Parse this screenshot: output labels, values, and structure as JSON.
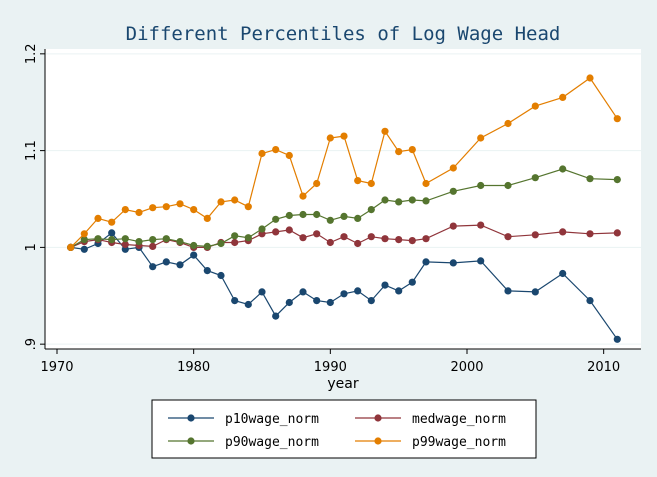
{
  "chart_data": {
    "type": "line",
    "title": "Different Percentiles of Log Wage Head",
    "xlabel": "year",
    "ylabel": "",
    "xlim": [
      1970,
      2012
    ],
    "ylim": [
      0.895,
      1.205
    ],
    "x_ticks": [
      1970,
      1980,
      1990,
      2000,
      2010
    ],
    "x_tick_labels": [
      "1970",
      "1980",
      "1990",
      "2000",
      "2010"
    ],
    "y_ticks": [
      0.9,
      1.0,
      1.1,
      1.2
    ],
    "y_tick_labels": [
      ".9",
      "1",
      "1.1",
      "1.2"
    ],
    "grid": "horizontal",
    "legend_position": "bottom",
    "x": [
      1971,
      1972,
      1973,
      1974,
      1975,
      1976,
      1977,
      1978,
      1979,
      1980,
      1981,
      1982,
      1983,
      1984,
      1985,
      1986,
      1987,
      1988,
      1989,
      1990,
      1991,
      1992,
      1993,
      1994,
      1995,
      1996,
      1997,
      1999,
      2001,
      2003,
      2005,
      2007,
      2009,
      2011
    ],
    "series": [
      {
        "name": "p10wage_norm",
        "color": "#1a476f",
        "values": [
          1.0,
          0.998,
          1.004,
          1.015,
          0.998,
          1.0,
          0.98,
          0.985,
          0.982,
          0.992,
          0.976,
          0.971,
          0.945,
          0.941,
          0.954,
          0.929,
          0.943,
          0.954,
          0.945,
          0.943,
          0.952,
          0.955,
          0.945,
          0.961,
          0.955,
          0.964,
          0.985,
          0.984,
          0.986,
          0.955,
          0.954,
          0.973,
          0.945,
          0.905
        ]
      },
      {
        "name": "medwage_norm",
        "color": "#90353b",
        "values": [
          1.0,
          1.006,
          1.008,
          1.005,
          1.003,
          1.002,
          1.001,
          1.008,
          1.005,
          1.0,
          1.0,
          1.005,
          1.005,
          1.007,
          1.014,
          1.016,
          1.018,
          1.01,
          1.014,
          1.005,
          1.011,
          1.004,
          1.011,
          1.009,
          1.008,
          1.007,
          1.009,
          1.022,
          1.023,
          1.011,
          1.013,
          1.016,
          1.014,
          1.015
        ]
      },
      {
        "name": "p90wage_norm",
        "color": "#55752f",
        "values": [
          1.0,
          1.008,
          1.009,
          1.008,
          1.009,
          1.006,
          1.008,
          1.009,
          1.006,
          1.002,
          1.001,
          1.004,
          1.012,
          1.01,
          1.019,
          1.029,
          1.033,
          1.034,
          1.034,
          1.028,
          1.032,
          1.03,
          1.039,
          1.049,
          1.047,
          1.049,
          1.048,
          1.058,
          1.064,
          1.064,
          1.072,
          1.081,
          1.071,
          1.07
        ]
      },
      {
        "name": "p99wage_norm",
        "color": "#e37e00",
        "values": [
          1.0,
          1.014,
          1.03,
          1.026,
          1.039,
          1.036,
          1.041,
          1.042,
          1.045,
          1.039,
          1.03,
          1.047,
          1.049,
          1.042,
          1.097,
          1.101,
          1.095,
          1.053,
          1.066,
          1.113,
          1.115,
          1.069,
          1.066,
          1.12,
          1.099,
          1.101,
          1.066,
          1.082,
          1.113,
          1.128,
          1.146,
          1.155,
          1.175,
          1.133
        ]
      }
    ]
  }
}
